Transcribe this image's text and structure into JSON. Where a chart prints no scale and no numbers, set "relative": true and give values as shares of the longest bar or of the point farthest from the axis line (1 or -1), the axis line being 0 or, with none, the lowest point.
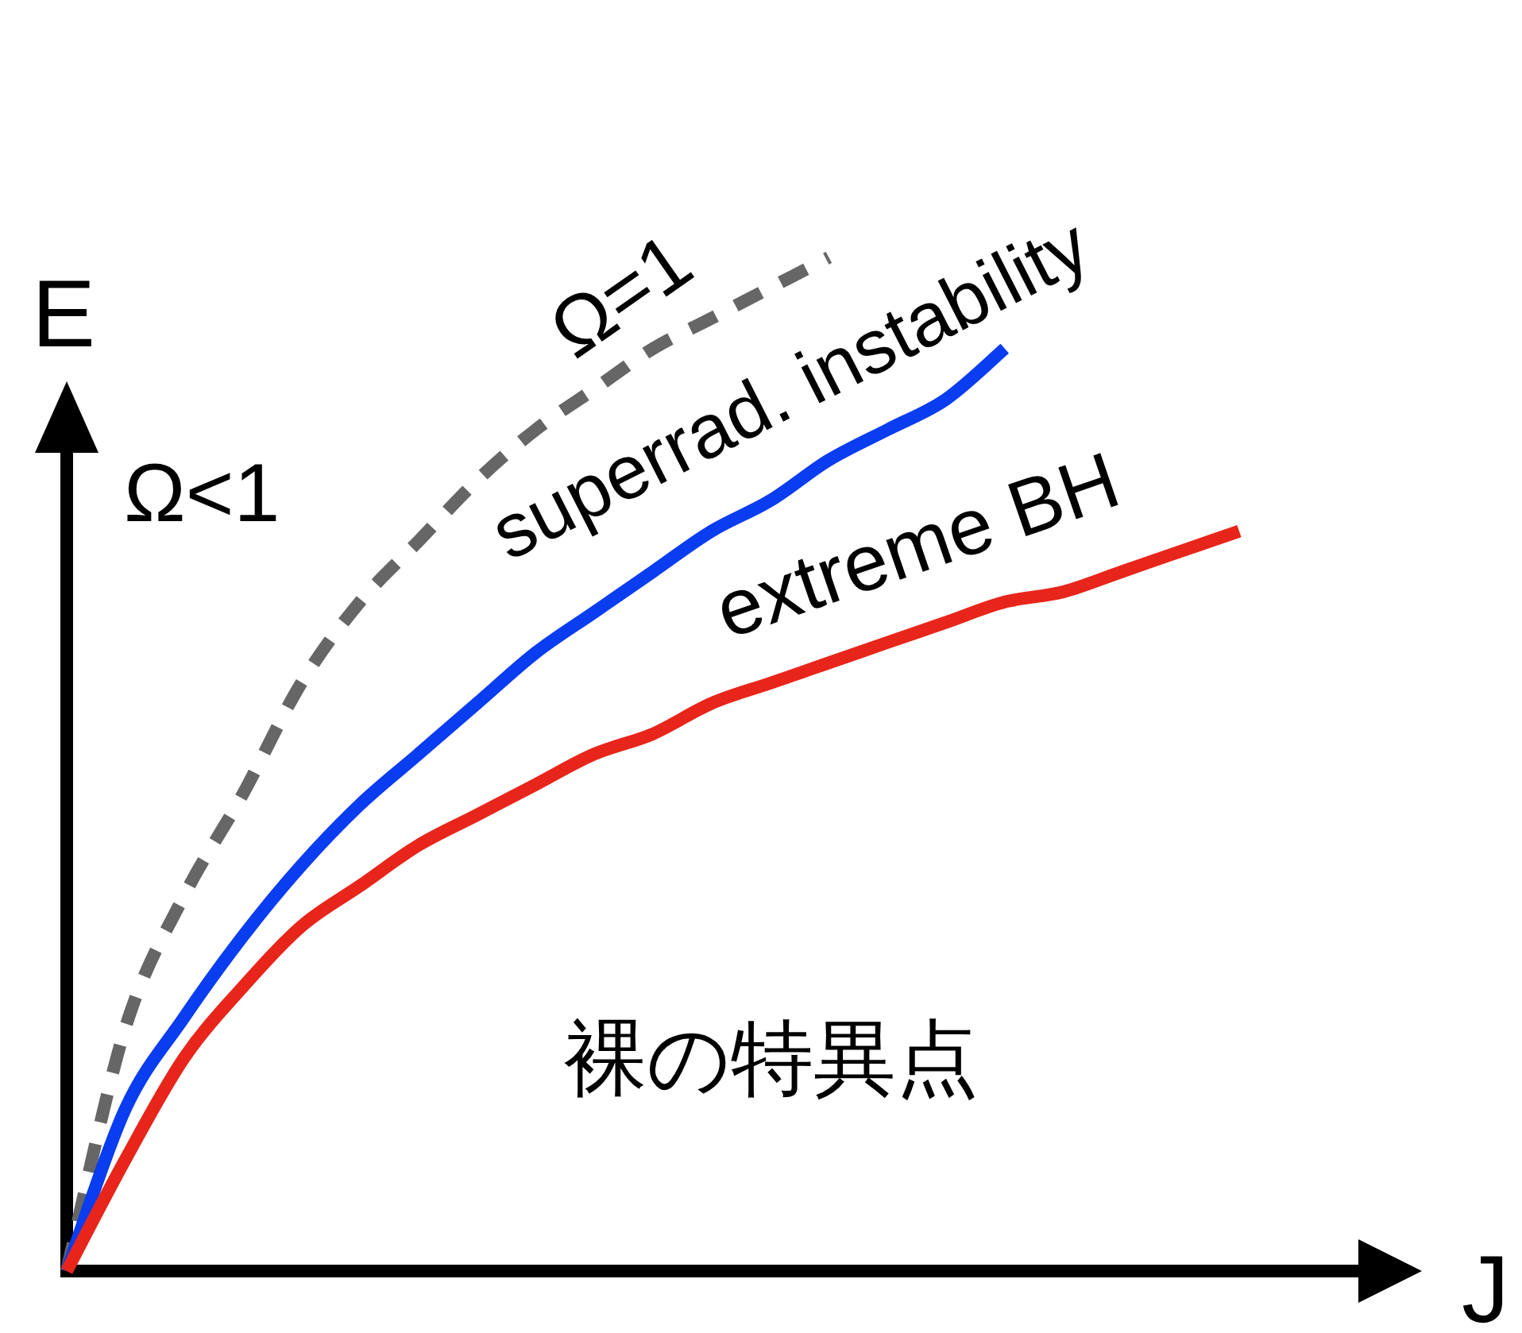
{
  "chart_data": {
    "type": "line",
    "relative": true,
    "xlabel": "J",
    "ylabel": "E",
    "categories": [
      null,
      null,
      null,
      null,
      null,
      null,
      null,
      null,
      null,
      null,
      null,
      null,
      null,
      null,
      null,
      null,
      null,
      null,
      null,
      null,
      null
    ],
    "series": [
      {
        "name": "Ω=1",
        "color": "#666666",
        "line_style": "dashed",
        "values": [
          0,
          0.24,
          0.37,
          0.47,
          0.58,
          0.66,
          0.72,
          0.78,
          0.83,
          0.87,
          0.91,
          0.94,
          0.97,
          1,
          null,
          null,
          null,
          null,
          null,
          null,
          null
        ]
      },
      {
        "name": "superrad. instability",
        "color": "#0a3cf0",
        "values": [
          0,
          0.16,
          0.25,
          0.33,
          0.4,
          0.46,
          0.51,
          0.56,
          0.61,
          0.65,
          0.69,
          0.73,
          0.76,
          0.8,
          0.83,
          0.86,
          0.91,
          null,
          null,
          null,
          null
        ]
      },
      {
        "name": "extreme BH",
        "color": "#e8251a",
        "values": [
          0,
          0.11,
          0.21,
          0.28,
          0.34,
          0.38,
          0.42,
          0.45,
          0.48,
          0.51,
          0.53,
          0.56,
          0.58,
          0.6,
          0.62,
          0.64,
          0.66,
          0.67,
          0.69,
          0.71,
          0.73
        ]
      }
    ],
    "annotations": [
      "Ω<1",
      "裸の特異点"
    ]
  }
}
